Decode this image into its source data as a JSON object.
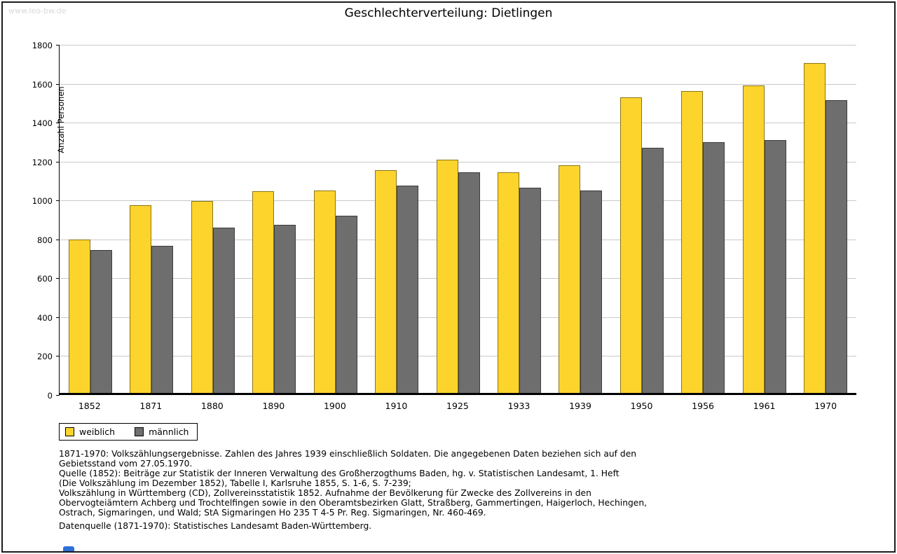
{
  "watermark": "www.leo-bw.de",
  "title": "Geschlechterverteilung: Dietlingen",
  "chart_data": {
    "type": "bar",
    "title": "Geschlechterverteilung: Dietlingen",
    "xlabel": "",
    "ylabel": "Anzahl Personen",
    "ylim": [
      0,
      1800
    ],
    "ytick_step": 200,
    "grid": true,
    "legend_position": "bottom-left",
    "categories": [
      "1852",
      "1871",
      "1880",
      "1890",
      "1900",
      "1910",
      "1925",
      "1933",
      "1939",
      "1950",
      "1956",
      "1961",
      "1970"
    ],
    "series": [
      {
        "name": "weiblich",
        "color": "#fdd42c",
        "values": [
          790,
          965,
          985,
          1035,
          1040,
          1145,
          1200,
          1135,
          1170,
          1520,
          1550,
          1580,
          1695
        ]
      },
      {
        "name": "männlich",
        "color": "#6e6e6e",
        "values": [
          735,
          755,
          850,
          865,
          910,
          1065,
          1135,
          1055,
          1040,
          1260,
          1290,
          1300,
          1505
        ]
      }
    ]
  },
  "colors": {
    "weiblich": "#fdd42c",
    "maennlich": "#6e6e6e",
    "gridline": "#c9c9c9",
    "axis": "#000000",
    "watermark": "#d9d9d9",
    "logo_blue": "#2e6fd9"
  },
  "footnotes_block1": [
    "1871-1970: Volkszählungsergebnisse. Zahlen des Jahres 1939 einschließlich Soldaten. Die angegebenen Daten beziehen sich auf den",
    "Gebietsstand vom 27.05.1970.",
    "Quelle (1852): Beiträge zur Statistik der Inneren Verwaltung des Großherzogthums Baden, hg. v. Statistischen Landesamt, 1. Heft",
    "(Die Volkszählung im Dezember 1852), Tabelle I, Karlsruhe 1855, S. 1-6, S. 7-239;",
    "Volkszählung in Württemberg (CD), Zollvereinsstatistik 1852. Aufnahme der Bevölkerung für Zwecke des Zollvereins in den",
    "Obervogteiämtern Achberg und Trochtelfingen sowie in den Oberamtsbezirken Glatt, Straßberg, Gammertingen, Haigerloch, Hechingen,",
    "Ostrach, Sigmaringen, und Wald; StA Sigmaringen Ho 235 T 4-5 Pr. Reg. Sigmaringen, Nr. 460-469."
  ],
  "footnotes_block2": [
    "Datenquelle (1871-1970): Statistisches Landesamt Baden-Württemberg."
  ]
}
